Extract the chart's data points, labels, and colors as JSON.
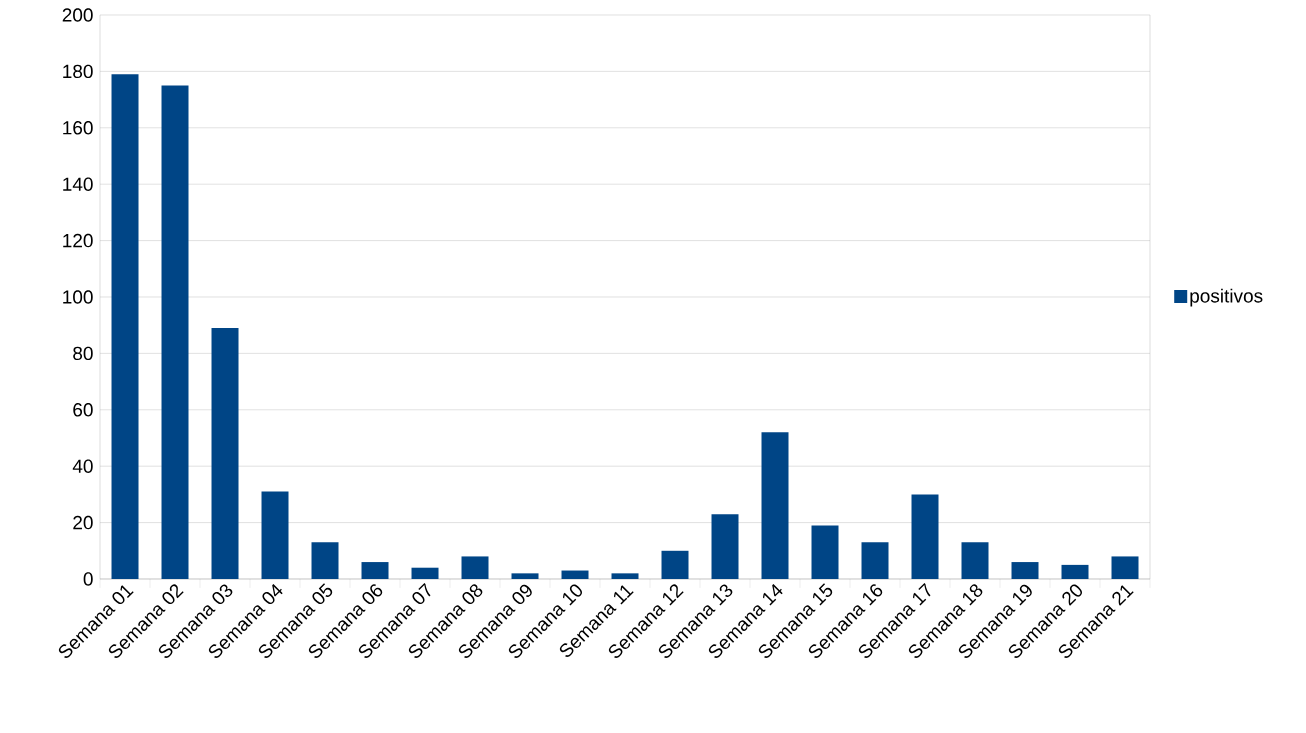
{
  "chart_data": {
    "type": "bar",
    "categories": [
      "Semana 01",
      "Semana 02",
      "Semana 03",
      "Semana 04",
      "Semana 05",
      "Semana 06",
      "Semana 07",
      "Semana 08",
      "Semana 09",
      "Semana 10",
      "Semana 11",
      "Semana 12",
      "Semana 13",
      "Semana 14",
      "Semana 15",
      "Semana 16",
      "Semana 17",
      "Semana 18",
      "Semana 19",
      "Semana 20",
      "Semana 21"
    ],
    "series": [
      {
        "name": "positivos",
        "color": "#004586",
        "values": [
          179,
          175,
          89,
          31,
          13,
          6,
          4,
          8,
          2,
          3,
          2,
          10,
          23,
          52,
          19,
          13,
          30,
          13,
          6,
          5,
          8
        ]
      }
    ],
    "ylim": [
      0,
      200
    ],
    "yticks": [
      0,
      20,
      40,
      60,
      80,
      100,
      120,
      140,
      160,
      180,
      200
    ],
    "grid": "y",
    "legend": "right"
  }
}
